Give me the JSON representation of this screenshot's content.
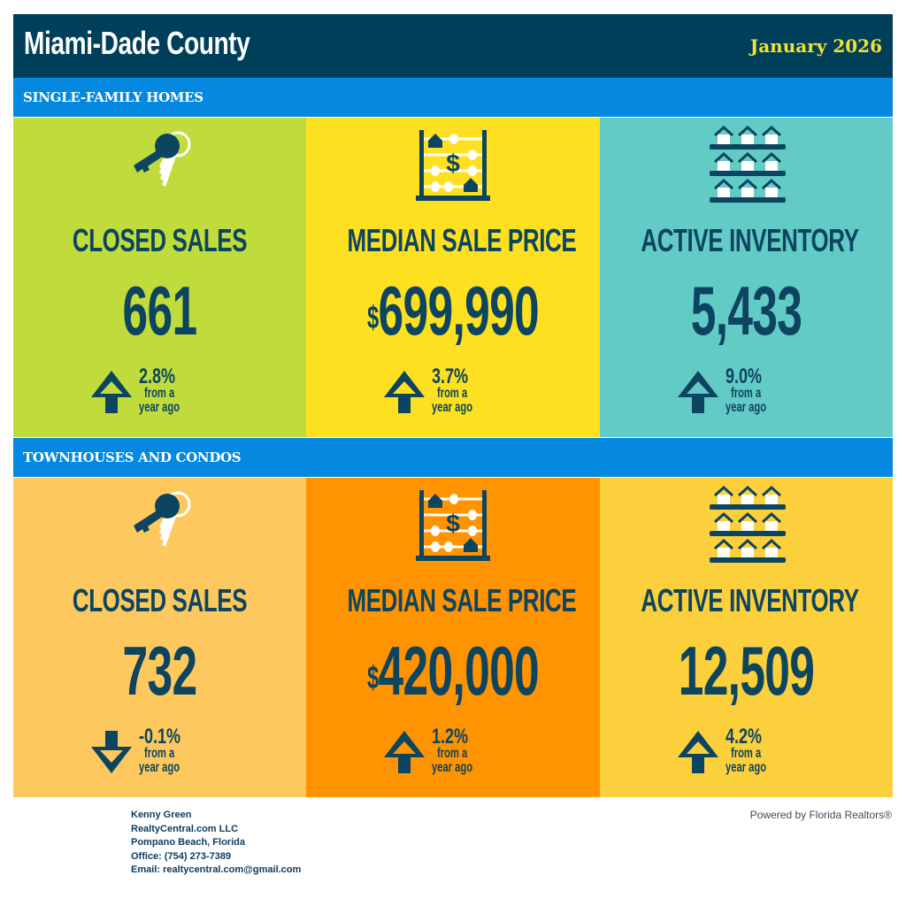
{
  "header": {
    "title": "Miami-Dade County",
    "date": "January 2026"
  },
  "colors": {
    "header_bg": "#003f5a",
    "band_bg": "#0589e0",
    "date_text": "#f2e22c",
    "text_dark": "#0d4460"
  },
  "sections": [
    {
      "title": "SINGLE-FAMILY HOMES",
      "cards": [
        {
          "icon": "keys-icon",
          "label": "CLOSED SALES",
          "currency": "",
          "value": "661",
          "direction": "up",
          "change": "2.8%",
          "sub1": "from a",
          "sub2": "year ago",
          "bg": "#c0dc3c"
        },
        {
          "icon": "abacus-icon",
          "label": "MEDIAN SALE PRICE",
          "currency": "$",
          "value": "699,990",
          "direction": "up",
          "change": "3.7%",
          "sub1": "from a",
          "sub2": "year ago",
          "bg": "#fde020"
        },
        {
          "icon": "houses-inventory-icon",
          "label": "ACTIVE INVENTORY",
          "currency": "",
          "value": "5,433",
          "direction": "up",
          "change": "9.0%",
          "sub1": "from a",
          "sub2": "year ago",
          "bg": "#63cbc6"
        }
      ]
    },
    {
      "title": "TOWNHOUSES AND CONDOS",
      "cards": [
        {
          "icon": "keys-icon",
          "label": "CLOSED SALES",
          "currency": "",
          "value": "732",
          "direction": "down",
          "change": "-0.1%",
          "sub1": "from a",
          "sub2": "year ago",
          "bg": "#fdc95e"
        },
        {
          "icon": "abacus-icon",
          "label": "MEDIAN SALE PRICE",
          "currency": "$",
          "value": "420,000",
          "direction": "up",
          "change": "1.2%",
          "sub1": "from a",
          "sub2": "year ago",
          "bg": "#ff9300"
        },
        {
          "icon": "houses-inventory-icon",
          "label": "ACTIVE INVENTORY",
          "currency": "",
          "value": "12,509",
          "direction": "up",
          "change": "4.2%",
          "sub1": "from a",
          "sub2": "year ago",
          "bg": "#fcd03c"
        }
      ]
    }
  ],
  "footer": {
    "agent_name": "Kenny Green",
    "company": "RealtyCentral.com LLC",
    "location": "Pompano Beach, Florida",
    "office": "Office: (754) 273-7389",
    "email": "Email: realtycentral.com@gmail.com",
    "powered_by": "Powered by Florida Realtors®"
  }
}
